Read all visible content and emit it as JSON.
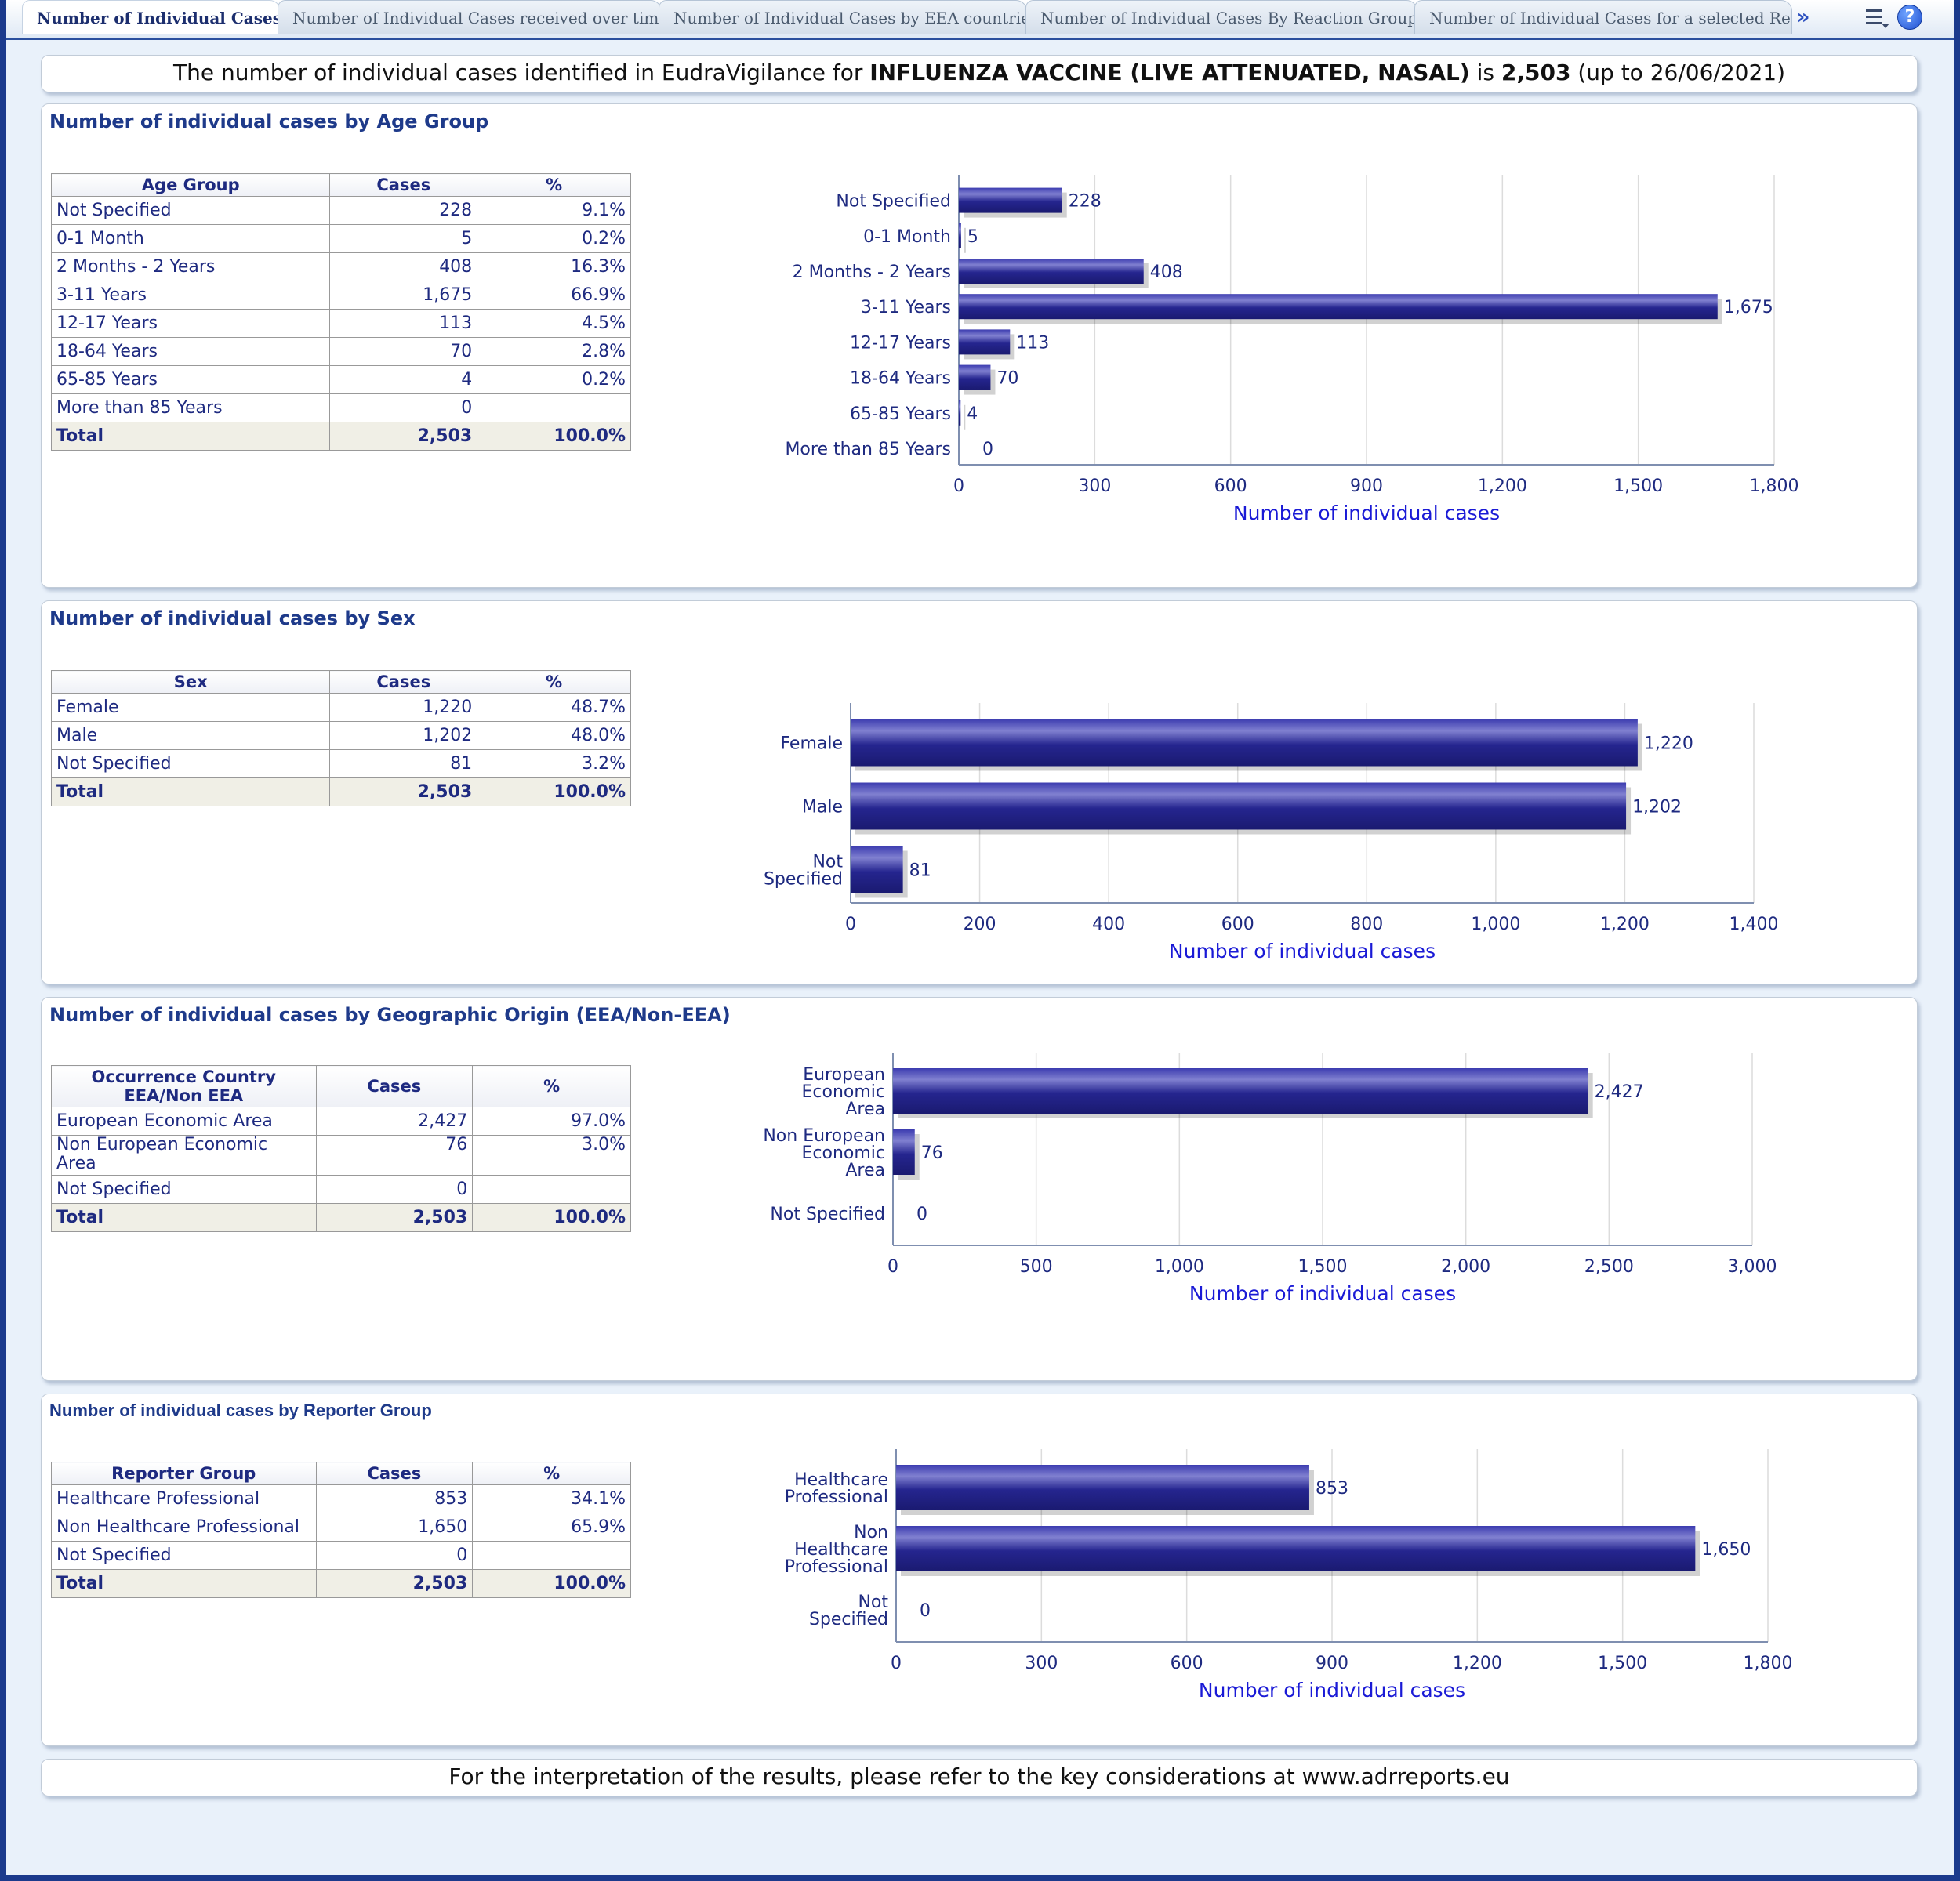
{
  "tabs": [
    {
      "label": "Number of Individual Cases",
      "active": true
    },
    {
      "label": "Number of Individual Cases received over time"
    },
    {
      "label": "Number of Individual Cases by EEA countries"
    },
    {
      "label": "Number of Individual Cases By Reaction Groups"
    },
    {
      "label": "Number of Individual Cases for a selected Reaction Groups"
    }
  ],
  "banner": {
    "prefix": "The number of individual cases identified in EudraVigilance for",
    "product": "INFLUENZA VACCINE (LIVE ATTENUATED, NASAL)",
    "mid": "is",
    "total": "2,503",
    "suffix": "(up to 26/06/2021)"
  },
  "footer": "For the interpretation of the results, please refer to the key considerations at www.adrreports.eu",
  "colors": {
    "bar": "#25258f",
    "axis_label": "#1a1ad6",
    "text": "#1e2a80"
  },
  "icons": {
    "more": "double-chevron-right-icon",
    "menu": "list-options-icon",
    "help": "help-icon"
  },
  "sections": [
    {
      "title": "Number of individual cases by Age Group",
      "table": {
        "headers": [
          "Age Group",
          "Cases",
          "%"
        ],
        "rows": [
          [
            "Not Specified",
            "228",
            "9.1%"
          ],
          [
            "0-1 Month",
            "5",
            "0.2%"
          ],
          [
            "2 Months - 2 Years",
            "408",
            "16.3%"
          ],
          [
            "3-11 Years",
            "1,675",
            "66.9%"
          ],
          [
            "12-17 Years",
            "113",
            "4.5%"
          ],
          [
            "18-64 Years",
            "70",
            "2.8%"
          ],
          [
            "65-85 Years",
            "4",
            "0.2%"
          ],
          [
            "More than 85 Years",
            "0",
            ""
          ]
        ],
        "total": [
          "Total",
          "2,503",
          "100.0%"
        ]
      }
    },
    {
      "title": "Number of individual cases by Sex",
      "table": {
        "headers": [
          "Sex",
          "Cases",
          "%"
        ],
        "rows": [
          [
            "Female",
            "1,220",
            "48.7%"
          ],
          [
            "Male",
            "1,202",
            "48.0%"
          ],
          [
            "Not Specified",
            "81",
            "3.2%"
          ]
        ],
        "total": [
          "Total",
          "2,503",
          "100.0%"
        ]
      }
    },
    {
      "title": "Number of individual cases by Geographic Origin (EEA/Non-EEA)",
      "table": {
        "headers": [
          "Occurrence Country EEA/Non EEA",
          "Cases",
          "%"
        ],
        "rows": [
          [
            "European Economic Area",
            "2,427",
            "97.0%"
          ],
          [
            "Non European Economic Area",
            "76",
            "3.0%"
          ],
          [
            "Not Specified",
            "0",
            ""
          ]
        ],
        "total": [
          "Total",
          "2,503",
          "100.0%"
        ]
      }
    },
    {
      "title": "Number of individual cases by Reporter Group",
      "table": {
        "headers": [
          "Reporter Group",
          "Cases",
          "%"
        ],
        "rows": [
          [
            "Healthcare Professional",
            "853",
            "34.1%"
          ],
          [
            "Non Healthcare Professional",
            "1,650",
            "65.9%"
          ],
          [
            "Not Specified",
            "0",
            ""
          ]
        ],
        "total": [
          "Total",
          "2,503",
          "100.0%"
        ]
      }
    }
  ],
  "chart_data": [
    {
      "type": "bar",
      "orientation": "horizontal",
      "categories": [
        "Not Specified",
        "0-1 Month",
        "2 Months - 2 Years",
        "3-11 Years",
        "12-17 Years",
        "18-64 Years",
        "65-85 Years",
        "More than 85 Years"
      ],
      "values": [
        228,
        5,
        408,
        1675,
        113,
        70,
        4,
        0
      ],
      "data_labels": [
        "228",
        "5",
        "408",
        "1,675",
        "113",
        "70",
        "4",
        "0"
      ],
      "xlabel": "Number of individual cases",
      "xlim": [
        0,
        1800
      ],
      "ticks": [
        0,
        300,
        600,
        900,
        1200,
        1500,
        1800
      ],
      "tick_labels": [
        "0",
        "300",
        "600",
        "900",
        "1,200",
        "1,500",
        "1,800"
      ],
      "grid": true
    },
    {
      "type": "bar",
      "orientation": "horizontal",
      "categories": [
        "Female",
        "Male",
        "Not Specified"
      ],
      "category_lines": [
        [
          "Female"
        ],
        [
          "Male"
        ],
        [
          "Not",
          "Specified"
        ]
      ],
      "values": [
        1220,
        1202,
        81
      ],
      "data_labels": [
        "1,220",
        "1,202",
        "81"
      ],
      "xlabel": "Number of individual cases",
      "xlim": [
        0,
        1400
      ],
      "ticks": [
        0,
        200,
        400,
        600,
        800,
        1000,
        1200,
        1400
      ],
      "tick_labels": [
        "0",
        "200",
        "400",
        "600",
        "800",
        "1,000",
        "1,200",
        "1,400"
      ],
      "grid": true
    },
    {
      "type": "bar",
      "orientation": "horizontal",
      "categories": [
        "European Economic Area",
        "Non European Economic Area",
        "Not Specified"
      ],
      "category_lines": [
        [
          "European",
          "Economic",
          "Area"
        ],
        [
          "Non European",
          "Economic",
          "Area"
        ],
        [
          "Not Specified"
        ]
      ],
      "values": [
        2427,
        76,
        0
      ],
      "data_labels": [
        "2,427",
        "76",
        "0"
      ],
      "xlabel": "Number of individual cases",
      "xlim": [
        0,
        3000
      ],
      "ticks": [
        0,
        500,
        1000,
        1500,
        2000,
        2500,
        3000
      ],
      "tick_labels": [
        "0",
        "500",
        "1,000",
        "1,500",
        "2,000",
        "2,500",
        "3,000"
      ],
      "grid": true
    },
    {
      "type": "bar",
      "orientation": "horizontal",
      "categories": [
        "Healthcare Professional",
        "Non Healthcare Professional",
        "Not Specified"
      ],
      "category_lines": [
        [
          "Healthcare",
          "Professional"
        ],
        [
          "Non",
          "Healthcare",
          "Professional"
        ],
        [
          "Not",
          "Specified"
        ]
      ],
      "values": [
        853,
        1650,
        0
      ],
      "data_labels": [
        "853",
        "1,650",
        "0"
      ],
      "xlabel": "Number of individual cases",
      "xlim": [
        0,
        1800
      ],
      "ticks": [
        0,
        300,
        600,
        900,
        1200,
        1500,
        1800
      ],
      "tick_labels": [
        "0",
        "300",
        "600",
        "900",
        "1,200",
        "1,500",
        "1,800"
      ],
      "grid": true
    }
  ]
}
